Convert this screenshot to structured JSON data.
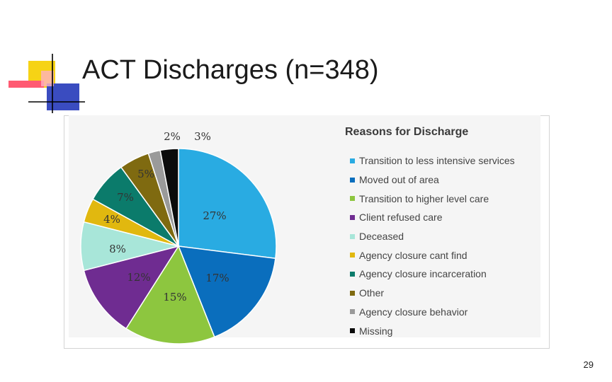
{
  "slide": {
    "title": "ACT Discharges (n=348)",
    "page_number": "29"
  },
  "chart_data": {
    "type": "pie",
    "title": "Reasons for Discharge",
    "legend_position": "right",
    "categories": [
      "Transition to less intensive services",
      "Moved out of area",
      "Transition to higher level care",
      "Client refused care",
      "Deceased",
      "Agency closure cant find",
      "Agency closure incarceration",
      "Other",
      "Agency closure behavior",
      "Missing"
    ],
    "values": [
      27,
      17,
      15,
      12,
      8,
      4,
      7,
      5,
      2,
      3
    ],
    "data_labels": [
      "27%",
      "17%",
      "15%",
      "12%",
      "8%",
      "4%",
      "7%",
      "5%",
      "2%",
      "3%"
    ],
    "colors": [
      "#29ABE2",
      "#0A6EBD",
      "#8DC63F",
      "#6F2C91",
      "#A8E6D9",
      "#E1B80F",
      "#0B7B6B",
      "#7F6A10",
      "#9A9A9A",
      "#0B0B0B"
    ]
  }
}
